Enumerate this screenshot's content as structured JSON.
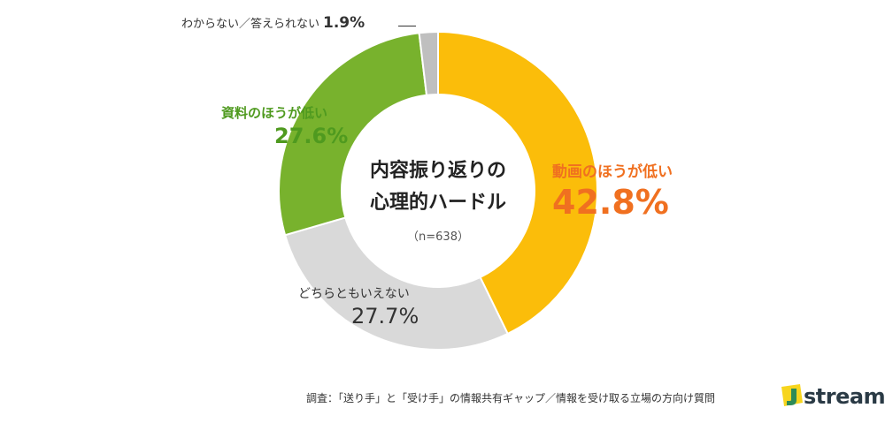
{
  "chart_data": {
    "type": "pie",
    "title": "内容振り返りの\n心理的ハードル",
    "sample": "（n=638）",
    "slices": [
      {
        "name": "動画のほうが低い",
        "value": 42.8,
        "label": "42.8%",
        "color": "#fbbd0a"
      },
      {
        "name": "どちらともいえない",
        "value": 27.7,
        "label": "27.7%",
        "color": "#d9d9d9"
      },
      {
        "name": "資料のほうが低い",
        "value": 27.6,
        "label": "27.6%",
        "color": "#78b22d"
      },
      {
        "name": "わからない／答えられない",
        "value": 1.9,
        "label": "1.9%",
        "color": "#bfbfbf"
      }
    ]
  },
  "source": "調査：「送り手」と「受け手」の情報共有ギャップ／情報を受け取る立場の方向け質問",
  "logo": {
    "text": "stream",
    "mark": "J",
    "mark_color": "#f7d51e",
    "mark_accent": "#2e8b57"
  }
}
